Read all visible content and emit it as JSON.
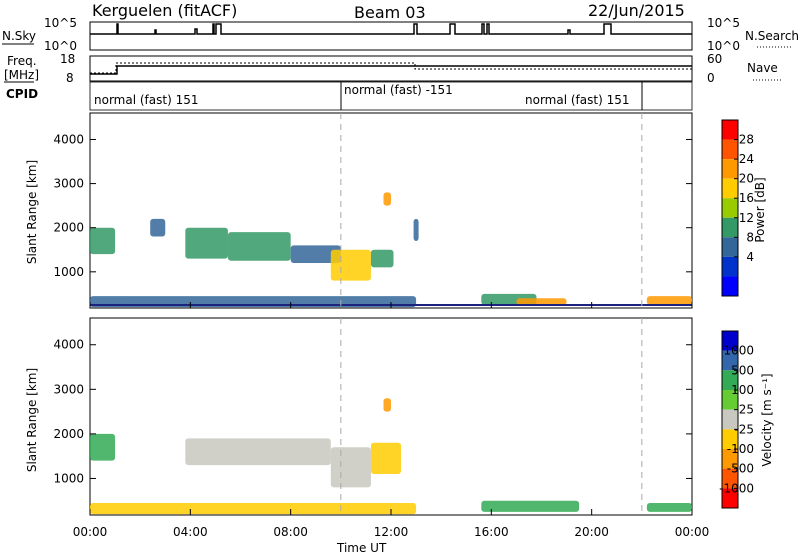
{
  "header": {
    "site": "Kerguelen (fitACF)",
    "beam": "Beam 03",
    "date": "22/Jun/2015"
  },
  "param_panel": {
    "nsky_label": "N.Sky",
    "freq_label_1": "Freq.",
    "freq_label_2": "[MHz]",
    "cpid_label": "CPID",
    "nsearch_label": "N.Search",
    "nave_label": "Nave",
    "nsky_ticks": [
      "10^5",
      "10^0"
    ],
    "nsearch_ticks": [
      "10^5",
      "10^0"
    ],
    "freq_ticks": [
      "18",
      "8"
    ],
    "nave_ticks": [
      "60",
      "0"
    ],
    "freq_mhz": 12,
    "nave_level": 40,
    "cpid_segments": [
      {
        "label": "normal (fast) 151",
        "start_h": 0,
        "end_h": 10
      },
      {
        "label": "normal (fast) -151",
        "start_h": 10,
        "end_h": 22
      },
      {
        "label": "normal (fast) 151",
        "start_h": 22,
        "end_h": 24
      }
    ]
  },
  "power_colorbar": {
    "label": "Power [dB]",
    "ticks": [
      "28",
      "24",
      "20",
      "16",
      "12",
      "8",
      "4"
    ],
    "colors": [
      "#ff0000",
      "#ff5500",
      "#ff9900",
      "#ffcc00",
      "#99cc00",
      "#339966",
      "#336699",
      "#0033cc",
      "#0000ff"
    ]
  },
  "velocity_colorbar": {
    "label": "Velocity [m s⁻¹]",
    "ticks": [
      "1000",
      "500",
      "100",
      "25",
      "-25",
      "-100",
      "-500",
      "-1000"
    ],
    "colors": [
      "#0000cc",
      "#3366aa",
      "#33aa55",
      "#66cc33",
      "#c8c8c0",
      "#ffcc00",
      "#ff9900",
      "#ff5500",
      "#ff0000"
    ]
  },
  "chart_data": {
    "type": "heatmap",
    "xlabel": "Time UT",
    "ylabel": "Slant Range [km]",
    "x_ticks": [
      "00:00",
      "04:00",
      "08:00",
      "12:00",
      "16:00",
      "20:00",
      "00:00"
    ],
    "y_ticks": [
      "1000",
      "2000",
      "3000",
      "4000"
    ],
    "xlim_hours": [
      0,
      24
    ],
    "ylim_km": [
      180,
      4600
    ],
    "dashed_time_markers_h": [
      10,
      22
    ],
    "power_regions": [
      {
        "t0": 0.0,
        "t1": 1.0,
        "r0": 1400,
        "r1": 2000,
        "value_db": 14
      },
      {
        "t0": 2.4,
        "t1": 3.0,
        "r0": 1800,
        "r1": 2200,
        "value_db": 10
      },
      {
        "t0": 3.8,
        "t1": 5.5,
        "r0": 1300,
        "r1": 2000,
        "value_db": 12
      },
      {
        "t0": 5.5,
        "t1": 8.0,
        "r0": 1250,
        "r1": 1900,
        "value_db": 14
      },
      {
        "t0": 8.0,
        "t1": 10.0,
        "r0": 1200,
        "r1": 1600,
        "value_db": 10
      },
      {
        "t0": 9.6,
        "t1": 11.2,
        "r0": 800,
        "r1": 1500,
        "value_db": 20
      },
      {
        "t0": 11.2,
        "t1": 12.1,
        "r0": 1100,
        "r1": 1500,
        "value_db": 14
      },
      {
        "t0": 11.7,
        "t1": 12.0,
        "r0": 2500,
        "r1": 2800,
        "value_db": 22
      },
      {
        "t0": 12.9,
        "t1": 13.1,
        "r0": 1700,
        "r1": 2200,
        "value_db": 10
      },
      {
        "t0": 15.6,
        "t1": 17.8,
        "r0": 250,
        "r1": 500,
        "value_db": 14
      },
      {
        "t0": 17.0,
        "t1": 19.0,
        "r0": 250,
        "r1": 400,
        "value_db": 24
      },
      {
        "t0": 22.2,
        "t1": 24.0,
        "r0": 250,
        "r1": 450,
        "value_db": 22
      },
      {
        "t0": 0.0,
        "t1": 13.0,
        "r0": 200,
        "r1": 450,
        "value_db": 8
      }
    ],
    "velocity_regions": [
      {
        "t0": 0.0,
        "t1": 1.0,
        "r0": 1400,
        "r1": 2000,
        "value_ms": 100
      },
      {
        "t0": 3.8,
        "t1": 9.6,
        "r0": 1300,
        "r1": 1900,
        "value_ms": 0
      },
      {
        "t0": 9.6,
        "t1": 11.2,
        "r0": 800,
        "r1": 1700,
        "value_ms": 0
      },
      {
        "t0": 11.2,
        "t1": 12.4,
        "r0": 1100,
        "r1": 1800,
        "value_ms": -50
      },
      {
        "t0": 11.7,
        "t1": 12.0,
        "r0": 2500,
        "r1": 2800,
        "value_ms": -500
      },
      {
        "t0": 15.6,
        "t1": 19.5,
        "r0": 250,
        "r1": 500,
        "value_ms": 100
      },
      {
        "t0": 22.2,
        "t1": 24.0,
        "r0": 250,
        "r1": 450,
        "value_ms": 100
      },
      {
        "t0": 0.0,
        "t1": 13.0,
        "r0": 200,
        "r1": 450,
        "value_ms": -100
      }
    ]
  }
}
